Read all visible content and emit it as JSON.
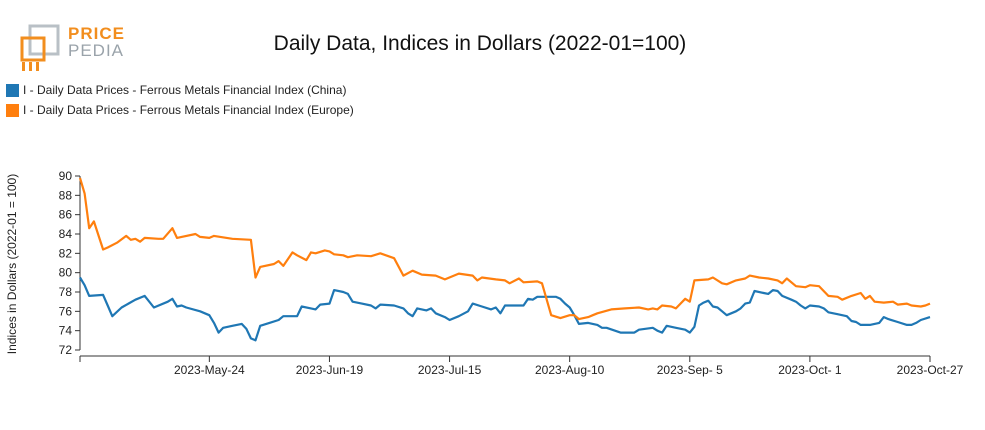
{
  "logo": {
    "top": "PRICE",
    "bottom": "PEDIA"
  },
  "chart_data": {
    "type": "line",
    "title": "Daily Data, Indices in Dollars (2022-01=100)",
    "ylabel": "Indices in Dollars (2022-01 = 100)",
    "xlabel": "",
    "ylim": [
      72,
      90
    ],
    "yticks": [
      72,
      74,
      76,
      78,
      80,
      82,
      84,
      86,
      88,
      90
    ],
    "x_range": [
      "2023-04-26",
      "2023-10-27"
    ],
    "xticks": [
      {
        "date": "2023-05-24",
        "label": "2023-May-24"
      },
      {
        "date": "2023-06-19",
        "label": "2023-Jun-19"
      },
      {
        "date": "2023-07-15",
        "label": "2023-Jul-15"
      },
      {
        "date": "2023-08-10",
        "label": "2023-Aug-10"
      },
      {
        "date": "2023-09-05",
        "label": "2023-Sep- 5"
      },
      {
        "date": "2023-10-01",
        "label": "2023-Oct- 1"
      },
      {
        "date": "2023-10-27",
        "label": "2023-Oct-27"
      }
    ],
    "grid": false,
    "legend_position": "top-left",
    "series": [
      {
        "name": "I - Daily Data Prices - Ferrous Metals Financial Index (China)",
        "color": "#1f77b4",
        "points": [
          [
            "2023-04-26",
            79.5
          ],
          [
            "2023-04-27",
            78.7
          ],
          [
            "2023-04-28",
            77.6
          ],
          [
            "2023-05-01",
            77.7
          ],
          [
            "2023-05-02",
            76.6
          ],
          [
            "2023-05-03",
            75.5
          ],
          [
            "2023-05-05",
            76.4
          ],
          [
            "2023-05-08",
            77.2
          ],
          [
            "2023-05-10",
            77.6
          ],
          [
            "2023-05-12",
            76.4
          ],
          [
            "2023-05-15",
            77.0
          ],
          [
            "2023-05-16",
            77.3
          ],
          [
            "2023-05-17",
            76.5
          ],
          [
            "2023-05-18",
            76.6
          ],
          [
            "2023-05-19",
            76.4
          ],
          [
            "2023-05-22",
            76.0
          ],
          [
            "2023-05-24",
            75.6
          ],
          [
            "2023-05-25",
            74.8
          ],
          [
            "2023-05-26",
            73.8
          ],
          [
            "2023-05-27",
            74.3
          ],
          [
            "2023-05-29",
            74.5
          ],
          [
            "2023-05-31",
            74.7
          ],
          [
            "2023-06-01",
            74.2
          ],
          [
            "2023-06-02",
            73.2
          ],
          [
            "2023-06-03",
            73.0
          ],
          [
            "2023-06-04",
            74.5
          ],
          [
            "2023-06-06",
            74.8
          ],
          [
            "2023-06-08",
            75.1
          ],
          [
            "2023-06-09",
            75.5
          ],
          [
            "2023-06-12",
            75.5
          ],
          [
            "2023-06-13",
            76.5
          ],
          [
            "2023-06-15",
            76.3
          ],
          [
            "2023-06-16",
            76.2
          ],
          [
            "2023-06-17",
            76.7
          ],
          [
            "2023-06-19",
            76.8
          ],
          [
            "2023-06-20",
            78.2
          ],
          [
            "2023-06-22",
            78.0
          ],
          [
            "2023-06-23",
            77.8
          ],
          [
            "2023-06-24",
            77.0
          ],
          [
            "2023-06-26",
            76.8
          ],
          [
            "2023-06-28",
            76.6
          ],
          [
            "2023-06-29",
            76.3
          ],
          [
            "2023-06-30",
            76.7
          ],
          [
            "2023-07-03",
            76.6
          ],
          [
            "2023-07-05",
            76.3
          ],
          [
            "2023-07-06",
            75.8
          ],
          [
            "2023-07-07",
            75.5
          ],
          [
            "2023-07-08",
            76.3
          ],
          [
            "2023-07-10",
            76.1
          ],
          [
            "2023-07-11",
            76.3
          ],
          [
            "2023-07-12",
            75.8
          ],
          [
            "2023-07-14",
            75.4
          ],
          [
            "2023-07-15",
            75.1
          ],
          [
            "2023-07-17",
            75.5
          ],
          [
            "2023-07-19",
            76.0
          ],
          [
            "2023-07-20",
            76.8
          ],
          [
            "2023-07-22",
            76.5
          ],
          [
            "2023-07-24",
            76.2
          ],
          [
            "2023-07-25",
            76.4
          ],
          [
            "2023-07-26",
            75.8
          ],
          [
            "2023-07-27",
            76.6
          ],
          [
            "2023-07-31",
            76.6
          ],
          [
            "2023-08-01",
            77.3
          ],
          [
            "2023-08-02",
            77.2
          ],
          [
            "2023-08-03",
            77.5
          ],
          [
            "2023-08-04",
            77.5
          ],
          [
            "2023-08-07",
            77.5
          ],
          [
            "2023-08-08",
            77.3
          ],
          [
            "2023-08-09",
            76.8
          ],
          [
            "2023-08-10",
            76.4
          ],
          [
            "2023-08-11",
            75.6
          ],
          [
            "2023-08-12",
            74.7
          ],
          [
            "2023-08-14",
            74.8
          ],
          [
            "2023-08-16",
            74.6
          ],
          [
            "2023-08-17",
            74.3
          ],
          [
            "2023-08-18",
            74.3
          ],
          [
            "2023-08-21",
            73.8
          ],
          [
            "2023-08-24",
            73.8
          ],
          [
            "2023-08-25",
            74.1
          ],
          [
            "2023-08-28",
            74.3
          ],
          [
            "2023-08-29",
            74.0
          ],
          [
            "2023-08-30",
            73.8
          ],
          [
            "2023-08-31",
            74.5
          ],
          [
            "2023-09-02",
            74.3
          ],
          [
            "2023-09-04",
            74.1
          ],
          [
            "2023-09-05",
            73.8
          ],
          [
            "2023-09-06",
            74.4
          ],
          [
            "2023-09-07",
            76.6
          ],
          [
            "2023-09-08",
            76.9
          ],
          [
            "2023-09-09",
            77.1
          ],
          [
            "2023-09-10",
            76.5
          ],
          [
            "2023-09-11",
            76.4
          ],
          [
            "2023-09-12",
            76.0
          ],
          [
            "2023-09-13",
            75.6
          ],
          [
            "2023-09-15",
            76.0
          ],
          [
            "2023-09-16",
            76.3
          ],
          [
            "2023-09-17",
            76.8
          ],
          [
            "2023-09-18",
            76.9
          ],
          [
            "2023-09-19",
            78.1
          ],
          [
            "2023-09-21",
            77.9
          ],
          [
            "2023-09-22",
            77.8
          ],
          [
            "2023-09-23",
            78.2
          ],
          [
            "2023-09-24",
            78.1
          ],
          [
            "2023-09-25",
            77.6
          ],
          [
            "2023-09-27",
            77.2
          ],
          [
            "2023-09-28",
            77.0
          ],
          [
            "2023-09-29",
            76.6
          ],
          [
            "2023-09-30",
            76.3
          ],
          [
            "2023-10-01",
            76.6
          ],
          [
            "2023-10-03",
            76.5
          ],
          [
            "2023-10-04",
            76.3
          ],
          [
            "2023-10-05",
            75.9
          ],
          [
            "2023-10-07",
            75.7
          ],
          [
            "2023-10-09",
            75.5
          ],
          [
            "2023-10-10",
            75.0
          ],
          [
            "2023-10-11",
            74.9
          ],
          [
            "2023-10-12",
            74.6
          ],
          [
            "2023-10-14",
            74.6
          ],
          [
            "2023-10-16",
            74.8
          ],
          [
            "2023-10-17",
            75.4
          ],
          [
            "2023-10-18",
            75.2
          ],
          [
            "2023-10-20",
            74.9
          ],
          [
            "2023-10-22",
            74.6
          ],
          [
            "2023-10-23",
            74.6
          ],
          [
            "2023-10-24",
            74.8
          ],
          [
            "2023-10-25",
            75.1
          ],
          [
            "2023-10-27",
            75.4
          ]
        ]
      },
      {
        "name": "I - Daily Data Prices - Ferrous Metals Financial Index (Europe)",
        "color": "#ff7f0e",
        "points": [
          [
            "2023-04-26",
            89.8
          ],
          [
            "2023-04-27",
            88.2
          ],
          [
            "2023-04-28",
            84.6
          ],
          [
            "2023-04-29",
            85.3
          ],
          [
            "2023-05-01",
            82.4
          ],
          [
            "2023-05-02",
            82.6
          ],
          [
            "2023-05-04",
            83.1
          ],
          [
            "2023-05-06",
            83.8
          ],
          [
            "2023-05-07",
            83.4
          ],
          [
            "2023-05-08",
            83.5
          ],
          [
            "2023-05-09",
            83.2
          ],
          [
            "2023-05-10",
            83.6
          ],
          [
            "2023-05-13",
            83.5
          ],
          [
            "2023-05-14",
            83.5
          ],
          [
            "2023-05-16",
            84.6
          ],
          [
            "2023-05-17",
            83.6
          ],
          [
            "2023-05-18",
            83.7
          ],
          [
            "2023-05-21",
            84.0
          ],
          [
            "2023-05-22",
            83.7
          ],
          [
            "2023-05-24",
            83.6
          ],
          [
            "2023-05-25",
            83.8
          ],
          [
            "2023-05-29",
            83.5
          ],
          [
            "2023-06-02",
            83.4
          ],
          [
            "2023-06-03",
            79.5
          ],
          [
            "2023-06-04",
            80.6
          ],
          [
            "2023-06-07",
            80.9
          ],
          [
            "2023-06-08",
            81.2
          ],
          [
            "2023-06-09",
            80.7
          ],
          [
            "2023-06-11",
            82.1
          ],
          [
            "2023-06-12",
            81.8
          ],
          [
            "2023-06-14",
            81.3
          ],
          [
            "2023-06-15",
            82.1
          ],
          [
            "2023-06-16",
            82.0
          ],
          [
            "2023-06-18",
            82.3
          ],
          [
            "2023-06-19",
            82.2
          ],
          [
            "2023-06-20",
            81.9
          ],
          [
            "2023-06-22",
            81.8
          ],
          [
            "2023-06-23",
            81.6
          ],
          [
            "2023-06-25",
            81.8
          ],
          [
            "2023-06-28",
            81.7
          ],
          [
            "2023-06-30",
            82.0
          ],
          [
            "2023-07-03",
            81.5
          ],
          [
            "2023-07-05",
            79.7
          ],
          [
            "2023-07-07",
            80.2
          ],
          [
            "2023-07-09",
            79.8
          ],
          [
            "2023-07-12",
            79.7
          ],
          [
            "2023-07-14",
            79.3
          ],
          [
            "2023-07-17",
            79.9
          ],
          [
            "2023-07-20",
            79.7
          ],
          [
            "2023-07-21",
            79.2
          ],
          [
            "2023-07-22",
            79.5
          ],
          [
            "2023-07-25",
            79.3
          ],
          [
            "2023-07-27",
            79.2
          ],
          [
            "2023-07-28",
            78.9
          ],
          [
            "2023-07-30",
            79.4
          ],
          [
            "2023-07-31",
            79.0
          ],
          [
            "2023-08-03",
            79.1
          ],
          [
            "2023-08-04",
            78.9
          ],
          [
            "2023-08-06",
            75.6
          ],
          [
            "2023-08-08",
            75.3
          ],
          [
            "2023-08-10",
            75.6
          ],
          [
            "2023-08-11",
            75.6
          ],
          [
            "2023-08-12",
            75.2
          ],
          [
            "2023-08-14",
            75.4
          ],
          [
            "2023-08-15",
            75.6
          ],
          [
            "2023-08-16",
            75.8
          ],
          [
            "2023-08-19",
            76.2
          ],
          [
            "2023-08-22",
            76.3
          ],
          [
            "2023-08-25",
            76.4
          ],
          [
            "2023-08-27",
            76.2
          ],
          [
            "2023-08-28",
            76.3
          ],
          [
            "2023-08-29",
            76.2
          ],
          [
            "2023-08-30",
            76.6
          ],
          [
            "2023-09-01",
            76.5
          ],
          [
            "2023-09-02",
            76.3
          ],
          [
            "2023-09-03",
            76.8
          ],
          [
            "2023-09-04",
            77.3
          ],
          [
            "2023-09-05",
            77.0
          ],
          [
            "2023-09-06",
            79.2
          ],
          [
            "2023-09-09",
            79.3
          ],
          [
            "2023-09-10",
            79.5
          ],
          [
            "2023-09-12",
            78.9
          ],
          [
            "2023-09-13",
            78.8
          ],
          [
            "2023-09-15",
            79.2
          ],
          [
            "2023-09-17",
            79.4
          ],
          [
            "2023-09-18",
            79.7
          ],
          [
            "2023-09-20",
            79.5
          ],
          [
            "2023-09-22",
            79.4
          ],
          [
            "2023-09-24",
            79.2
          ],
          [
            "2023-09-25",
            78.9
          ],
          [
            "2023-09-26",
            79.4
          ],
          [
            "2023-09-28",
            78.6
          ],
          [
            "2023-09-30",
            78.5
          ],
          [
            "2023-10-01",
            78.7
          ],
          [
            "2023-10-03",
            78.6
          ],
          [
            "2023-10-05",
            77.6
          ],
          [
            "2023-10-07",
            77.5
          ],
          [
            "2023-10-08",
            77.2
          ],
          [
            "2023-10-10",
            77.6
          ],
          [
            "2023-10-12",
            77.9
          ],
          [
            "2023-10-13",
            77.3
          ],
          [
            "2023-10-14",
            77.6
          ],
          [
            "2023-10-15",
            77.0
          ],
          [
            "2023-10-17",
            76.9
          ],
          [
            "2023-10-19",
            77.0
          ],
          [
            "2023-10-20",
            76.7
          ],
          [
            "2023-10-22",
            76.8
          ],
          [
            "2023-10-23",
            76.6
          ],
          [
            "2023-10-25",
            76.5
          ],
          [
            "2023-10-26",
            76.6
          ],
          [
            "2023-10-27",
            76.8
          ]
        ]
      }
    ]
  }
}
